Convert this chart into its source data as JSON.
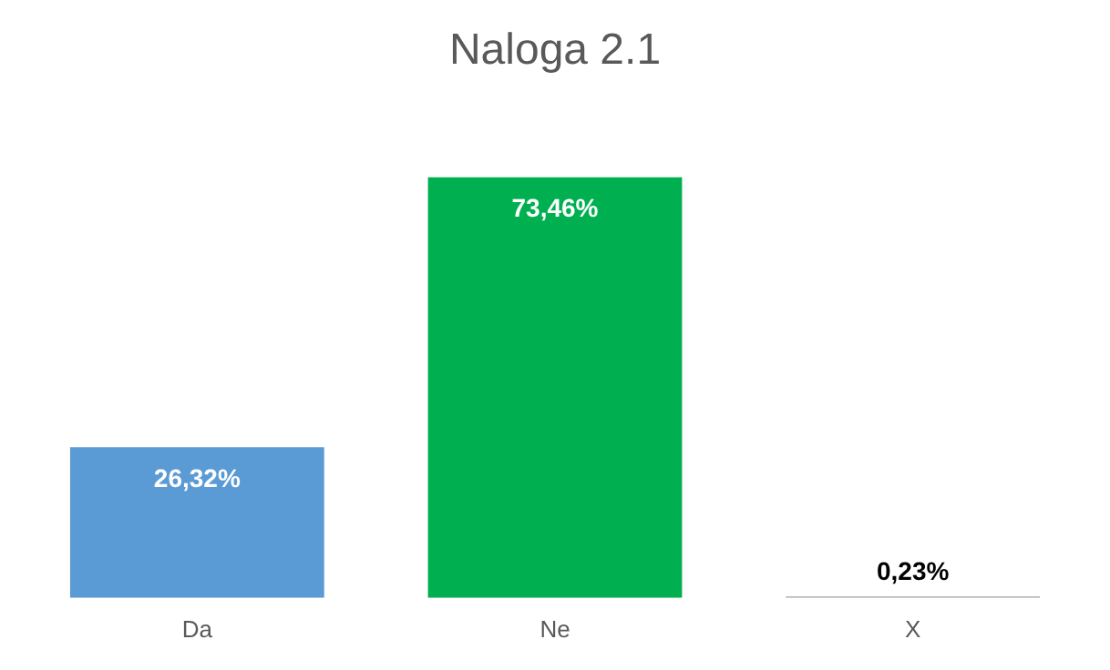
{
  "chart_data": {
    "type": "bar",
    "title": "Naloga 2.1",
    "categories": [
      "Da",
      "Ne",
      "X"
    ],
    "values": [
      26.32,
      73.46,
      0.23
    ],
    "colors": [
      "#5b9bd5",
      "#00b050",
      "#a5a5a5"
    ],
    "value_labels": [
      "26,32%",
      "73,46%",
      "0,23%"
    ],
    "tick_labels": "x",
    "grid": false,
    "legend": false
  }
}
